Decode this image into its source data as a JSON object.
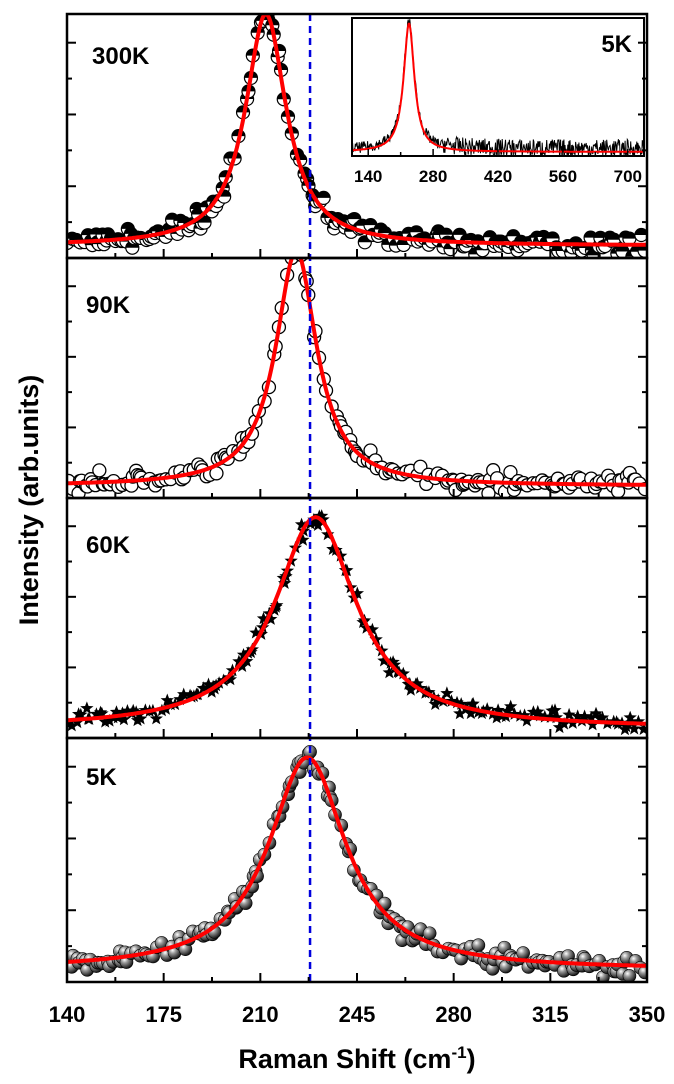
{
  "figure": {
    "ylabel": "Intensity (arb.units)",
    "xlabel": "Raman Shift (cm",
    "xlabel_sup": "-1",
    "xlabel_close": ")"
  },
  "chart_data": [
    {
      "type": "scatter",
      "panel": "300K",
      "label": "300K",
      "xlim": [
        140,
        350
      ],
      "x_ticks": [
        "140",
        "175",
        "210",
        "245",
        "280",
        "315",
        "350"
      ],
      "reference_line_x": 228,
      "marker": "half-filled circle",
      "fit": {
        "center": 212,
        "hwhm": 9,
        "amplitude": 0.95,
        "baseline": 0.05
      },
      "series": [
        {
          "name": "",
          "style": "markers",
          "color": "#000000"
        },
        {
          "name": "",
          "style": "fit line",
          "color": "#ff0000"
        }
      ]
    },
    {
      "type": "line",
      "panel": "5K inset",
      "label": "5K",
      "xlim": [
        105,
        735
      ],
      "x_ticks": [
        "140",
        "280",
        "420",
        "560",
        "700"
      ],
      "fit": {
        "center": 228,
        "hwhm": 14,
        "amplitude": 0.93,
        "baseline": 0.03
      },
      "series": [
        {
          "name": "",
          "style": "data line",
          "color": "#000000"
        },
        {
          "name": "",
          "style": "fit line",
          "color": "#ff0000"
        }
      ]
    },
    {
      "type": "scatter",
      "panel": "90K",
      "label": "90K",
      "xlim": [
        140,
        350
      ],
      "reference_line_x": 228,
      "marker": "open circle",
      "fit": {
        "center": 223,
        "hwhm": 9,
        "amplitude": 0.98,
        "baseline": 0.05
      },
      "series": [
        {
          "name": "",
          "style": "markers",
          "color": "#000000"
        },
        {
          "name": "",
          "style": "fit line",
          "color": "#ff0000"
        }
      ]
    },
    {
      "type": "scatter",
      "panel": "60K",
      "label": "60K",
      "xlim": [
        140,
        350
      ],
      "reference_line_x": 228,
      "marker": "star",
      "fit": {
        "center": 230,
        "hwhm": 18,
        "amplitude": 0.88,
        "baseline": 0.04
      },
      "series": [
        {
          "name": "",
          "style": "markers",
          "color": "#000000"
        },
        {
          "name": "",
          "style": "fit line",
          "color": "#ff0000"
        }
      ]
    },
    {
      "type": "scatter",
      "panel": "5K",
      "label": "5K",
      "xlim": [
        140,
        350
      ],
      "reference_line_x": 228,
      "marker": "shaded sphere",
      "fit": {
        "center": 227,
        "hwhm": 17,
        "amplitude": 0.87,
        "baseline": 0.05
      },
      "series": [
        {
          "name": "",
          "style": "markers",
          "color": "#000000"
        },
        {
          "name": "",
          "style": "fit line",
          "color": "#ff0000"
        }
      ]
    }
  ],
  "colors": {
    "fit": "#ff0000",
    "reference_line": "#0000dd",
    "markers": "#000000",
    "axes": "#000000"
  }
}
